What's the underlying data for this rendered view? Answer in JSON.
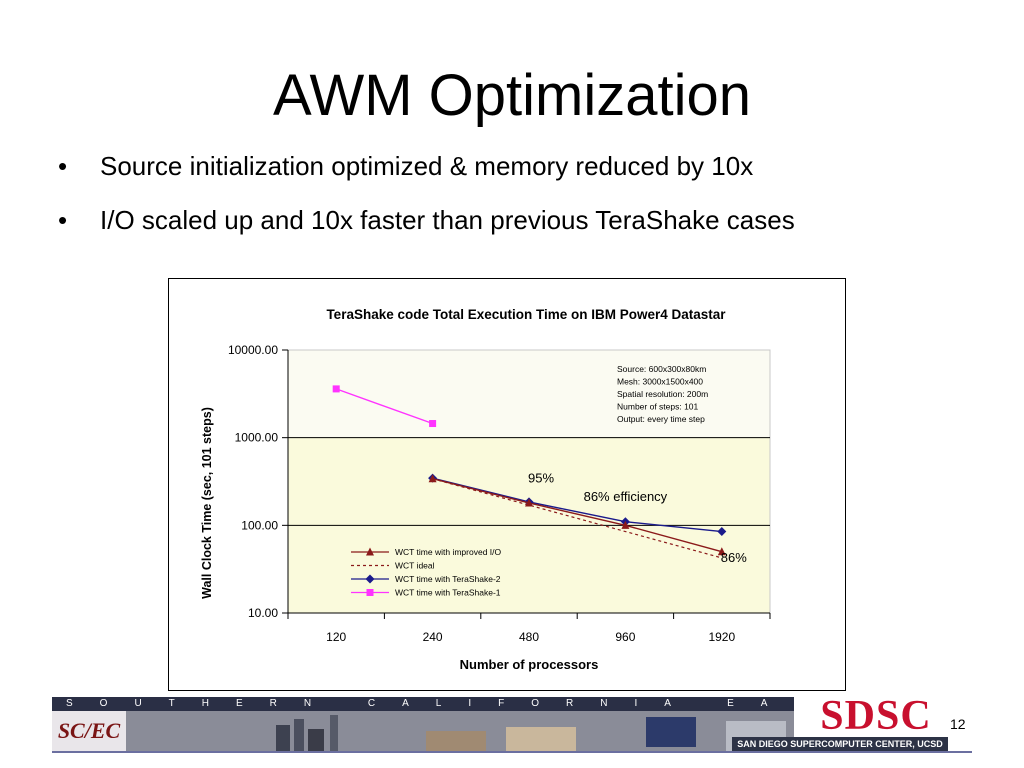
{
  "slide": {
    "title": "AWM Optimization",
    "bullets": [
      "Source initialization optimized & memory reduced by 10x",
      "I/O scaled up and 10x faster than previous TeraShake cases"
    ],
    "bullet_symbol": "•",
    "page_number": "12"
  },
  "footer": {
    "band_text": "SOUTHERN CALIFORNIA EARTHQUAKE CENTER",
    "scec_logo_text": "SC/EC",
    "sdsc_logo_text": "SDSC",
    "sdsc_subtitle": "SAN DIEGO SUPERCOMPUTER CENTER, UCSD"
  },
  "chart_data": {
    "type": "line",
    "title": "TeraShake code Total  Execution Time on IBM Power4 Datastar",
    "xlabel": "Number of processors",
    "ylabel": "Wall Clock Time (sec, 101 steps)",
    "categories": [
      "120",
      "240",
      "480",
      "960",
      "1920"
    ],
    "y_scale": "log",
    "ylim": [
      10,
      10000
    ],
    "y_ticks": [
      {
        "value": 10000,
        "label": "10000.00"
      },
      {
        "value": 1000,
        "label": "1000.00"
      },
      {
        "value": 100,
        "label": "100.00"
      },
      {
        "value": 10,
        "label": "10.00"
      }
    ],
    "series": [
      {
        "name": "WCT time with improved I/O",
        "color": "#8b1a1a",
        "marker": "triangle",
        "dash": false,
        "values": [
          null,
          340,
          180,
          100,
          50
        ]
      },
      {
        "name": "WCT ideal",
        "color": "#8b1a1a",
        "marker": "none",
        "dash": true,
        "values": [
          null,
          340,
          170,
          85,
          42.5
        ]
      },
      {
        "name": "WCT time with TeraShake-2",
        "color": "#1a1a8b",
        "marker": "diamond",
        "dash": false,
        "values": [
          null,
          345,
          185,
          110,
          85
        ]
      },
      {
        "name": "WCT time with TeraShake-1",
        "color": "#ff33ff",
        "marker": "square",
        "dash": false,
        "values": [
          3600,
          1450,
          null,
          null,
          null
        ]
      }
    ],
    "annotations": [
      {
        "text": "95%",
        "x": "480",
        "y": 310
      },
      {
        "text": "86% efficiency",
        "x": "960",
        "y": 190
      },
      {
        "text": "86%",
        "x": "1920",
        "y": 38
      }
    ],
    "info_box": [
      "Source: 600x300x80km",
      "Mesh: 3000x1500x400",
      "Spatial resolution: 200m",
      "Number of steps: 101",
      "Output: every time step"
    ],
    "plot_bands": [
      {
        "from": 1000,
        "to": 10000,
        "color": "#fbfbf2"
      },
      {
        "from": 10,
        "to": 1000,
        "color": "#fafadc"
      }
    ],
    "legend_position": "lower-left",
    "grid": "major y gridlines at 100 and 1000"
  }
}
